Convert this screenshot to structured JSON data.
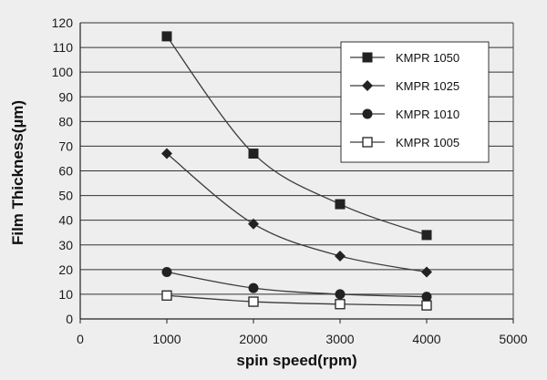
{
  "chart_data": {
    "type": "line",
    "title": "",
    "xlabel": "spin speed(rpm)",
    "ylabel": "Film Thickness(µm)",
    "xlim": [
      0,
      5000
    ],
    "ylim": [
      0,
      120
    ],
    "x_ticks": [
      "0",
      "1000",
      "2000",
      "3000",
      "4000",
      "5000"
    ],
    "y_ticks": [
      "0",
      "10",
      "20",
      "30",
      "40",
      "50",
      "60",
      "70",
      "80",
      "90",
      "100",
      "110",
      "120"
    ],
    "grid": "horizontal",
    "legend_position": "top-right",
    "x": [
      1000,
      2000,
      3000,
      4000
    ],
    "series": [
      {
        "name": "KMPR 1050",
        "marker": "filled-square",
        "values": [
          114.5,
          67,
          46.5,
          34
        ]
      },
      {
        "name": "KMPR 1025",
        "marker": "filled-diamond",
        "values": [
          67,
          38.5,
          25.5,
          19
        ]
      },
      {
        "name": "KMPR 1010",
        "marker": "filled-circle",
        "values": [
          19,
          12.5,
          10,
          9
        ]
      },
      {
        "name": "KMPR 1005",
        "marker": "open-square",
        "values": [
          9.5,
          7,
          6,
          5.5
        ]
      }
    ]
  },
  "colors": {
    "line": "#3a3a3a",
    "marker": "#222222",
    "gridline": "#333333",
    "background": "#eeeeee"
  }
}
